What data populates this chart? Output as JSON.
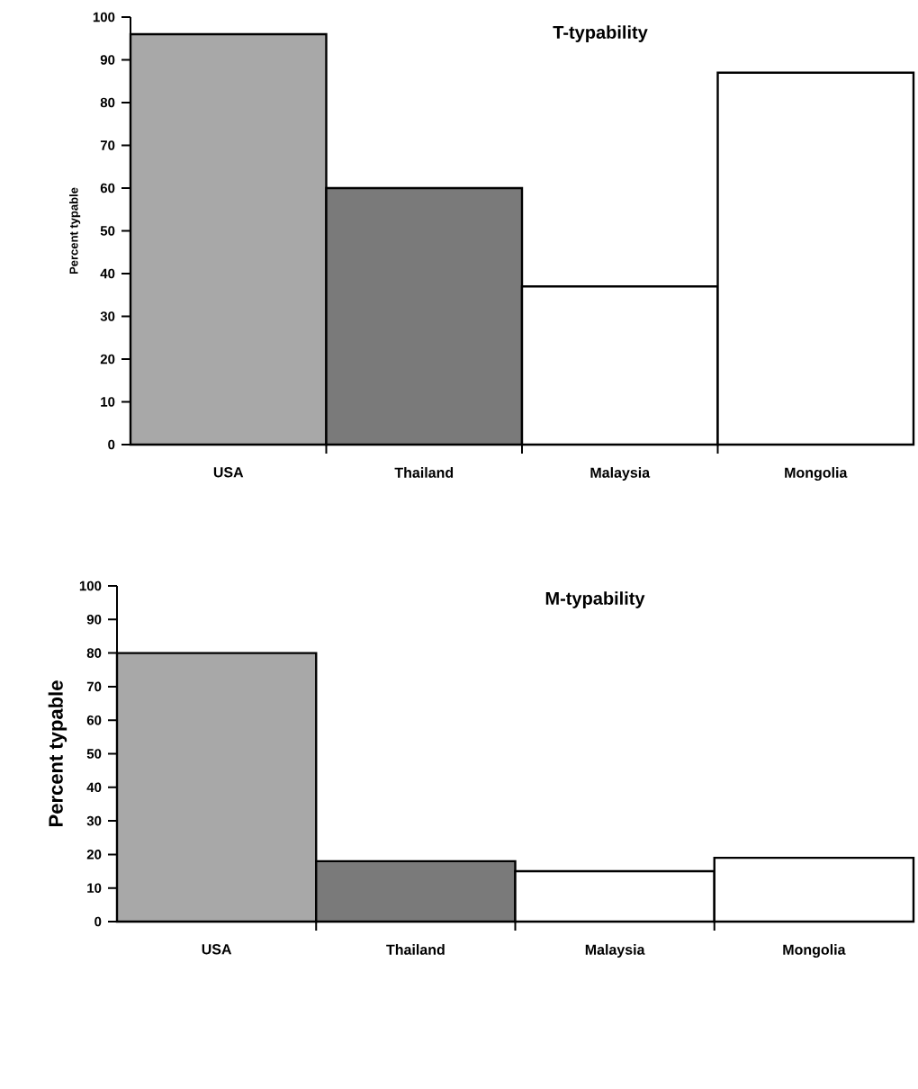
{
  "chart_data": [
    {
      "type": "bar",
      "title": "T-typability",
      "ylabel": "Percent typable",
      "categories": [
        "USA",
        "Thailand",
        "Malaysia",
        "Mongolia"
      ],
      "values": [
        96,
        60,
        37,
        87
      ],
      "colors": [
        "#a8a8a8",
        "#7a7a7a",
        "#ffffff",
        "#ffffff"
      ],
      "ylim": [
        0,
        100
      ],
      "yticks": [
        0,
        10,
        20,
        30,
        40,
        50,
        60,
        70,
        80,
        90,
        100
      ]
    },
    {
      "type": "bar",
      "title": "M-typability",
      "ylabel": "Percent typable",
      "categories": [
        "USA",
        "Thailand",
        "Malaysia",
        "Mongolia"
      ],
      "values": [
        80,
        18,
        15,
        19
      ],
      "colors": [
        "#a8a8a8",
        "#7a7a7a",
        "#ffffff",
        "#ffffff"
      ],
      "ylim": [
        0,
        100
      ],
      "yticks": [
        0,
        10,
        20,
        30,
        40,
        50,
        60,
        70,
        80,
        90,
        100
      ]
    }
  ]
}
